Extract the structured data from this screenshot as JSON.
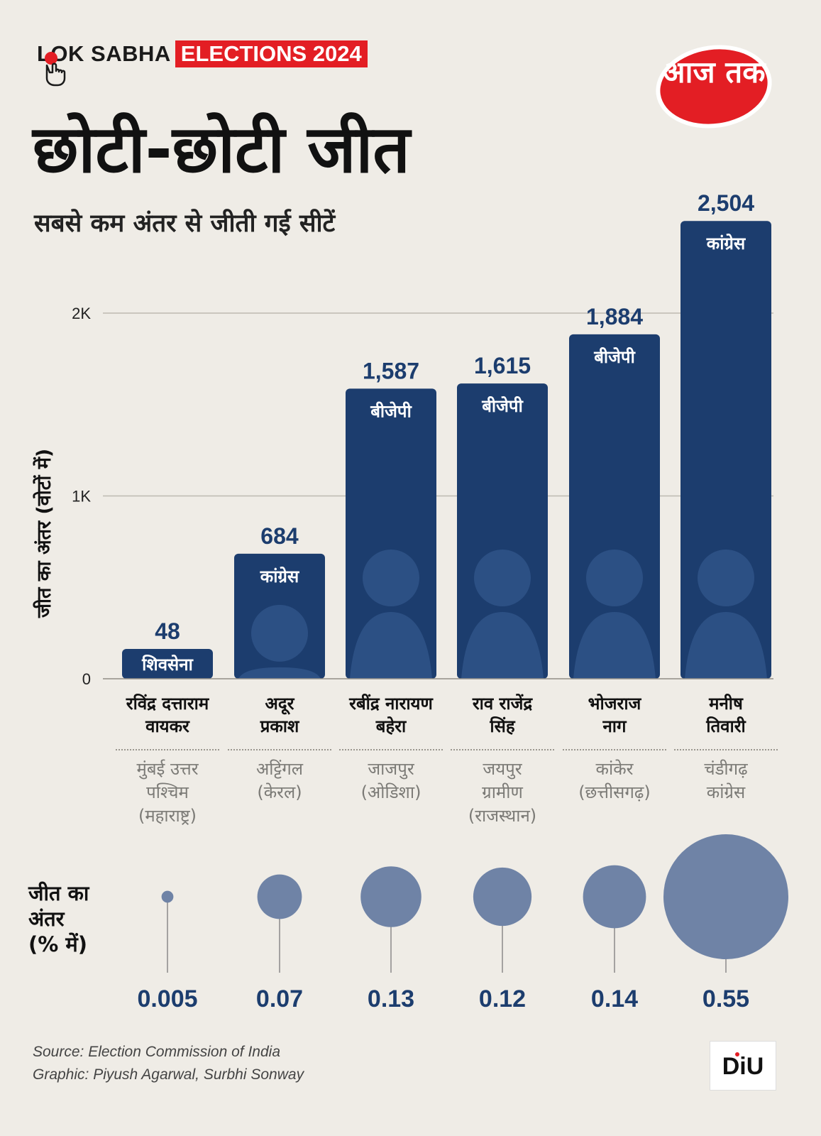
{
  "header": {
    "brand_text": "LOK SABHA",
    "brand_tag": "ELECTIONS 2024",
    "channel_logo_text": "आज तक"
  },
  "title": "छोटी-छोटी जीत",
  "subtitle": "सबसे कम अंतर से जीती गई सीटें",
  "chart_data": [
    {
      "type": "bar",
      "ylabel": "जीत का अंतर (वोटों में)",
      "ylim": [
        0,
        2600
      ],
      "yticks": [
        0,
        1000,
        2000
      ],
      "ytick_labels": [
        "0",
        "1K",
        "2K"
      ],
      "grid": true,
      "categories": [
        "रविंद्र दत्ताराम वायकर",
        "अदूर प्रकाश",
        "रबींद्र नारायण बहेरा",
        "राव राजेंद्र सिंह",
        "भोजराज नाग",
        "मनीष तिवारी"
      ],
      "values": [
        48,
        684,
        1587,
        1615,
        1884,
        2504
      ],
      "value_labels": [
        "48",
        "684",
        "1,587",
        "1,615",
        "1,884",
        "2,504"
      ],
      "party_labels": [
        "शिवसेना",
        "कांग्रेस",
        "बीजेपी",
        "बीजेपी",
        "बीजेपी",
        "कांग्रेस"
      ],
      "constituencies": [
        "मुंबई उत्तर\nपश्चिम\n(महाराष्ट्र)",
        "अट्टिंगल\n(केरल)",
        "जाजपुर\n(ओडिशा)",
        "जयपुर\nग्रामीण\n(राजस्थान)",
        "कांकेर\n(छत्तीसगढ़)",
        "चंडीगढ़\nकांग्रेस"
      ],
      "bar_color": "#1c3d6e"
    },
    {
      "type": "scatter",
      "title": "जीत का\nअंतर\n(% में)",
      "values": [
        0.005,
        0.07,
        0.13,
        0.12,
        0.14,
        0.55
      ],
      "value_labels": [
        "0.005",
        "0.07",
        "0.13",
        "0.12",
        "0.14",
        "0.55"
      ],
      "bubble_color": "#6f83a6"
    }
  ],
  "names_display": [
    "रविंद्र दत्ताराम\nवायकर",
    "अदूर\nप्रकाश",
    "रबींद्र नारायण\nबहेरा",
    "राव राजेंद्र\nसिंह",
    "भोजराज\nनाग",
    "मनीष\nतिवारी"
  ],
  "footer": {
    "source": "Source: Election Commission of India",
    "graphic": "Graphic: Piyush Agarwal, Surbhi Sonway",
    "diu_text": "DiU"
  },
  "colors": {
    "background": "#efece6",
    "accent_red": "#e31e24",
    "bar_blue": "#1c3d6e",
    "value_blue": "#1c3d6e",
    "bubble": "#6f83a6"
  }
}
